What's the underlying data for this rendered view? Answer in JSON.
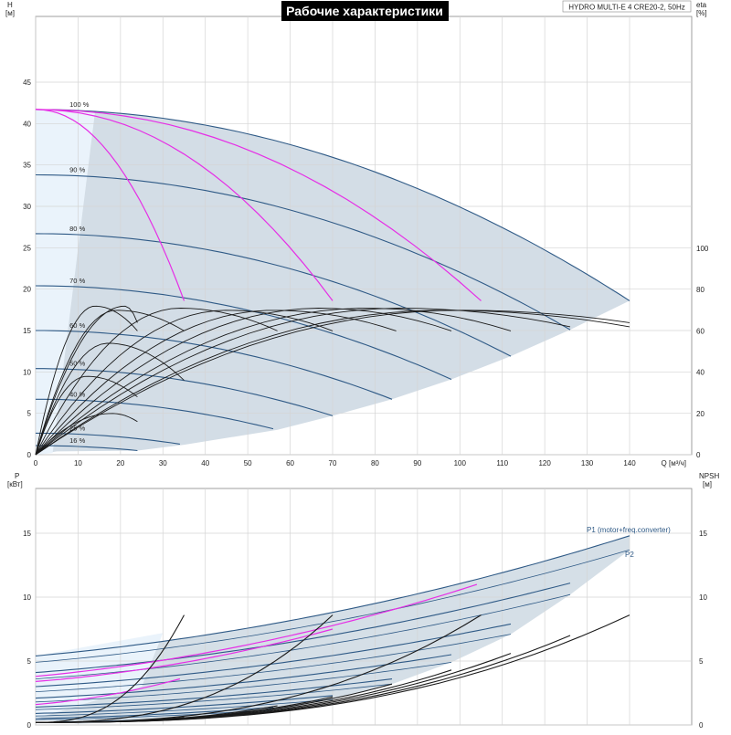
{
  "header": {
    "title": "Рабочие характеристики",
    "model": "HYDRO MULTI-E 4 CRE20-2, 50Hz"
  },
  "colors": {
    "envelope_dark": "#d3dde6",
    "envelope_light": "#eaf3fb",
    "curve_blue": "#2f5a86",
    "curve_magenta": "#e62ee6",
    "curve_black": "#1a1a1a",
    "grid": "#d4d4d4",
    "title_bg": "#000000",
    "title_fg": "#ffffff"
  },
  "chart_data": [
    {
      "type": "line",
      "x_label": "Q [м³/ч]",
      "y_label": "H\n[м]",
      "y2_label": "eta\n[%]",
      "xlim": [
        0,
        140
      ],
      "ylim": [
        0,
        50
      ],
      "y2lim": [
        0,
        160
      ],
      "x_ticks": [
        0,
        10,
        20,
        30,
        40,
        50,
        60,
        70,
        80,
        90,
        100,
        110,
        120,
        130,
        140
      ],
      "y_ticks": [
        0,
        5,
        10,
        15,
        20,
        25,
        30,
        35,
        40,
        45
      ],
      "y2_ticks": [
        0,
        20,
        40,
        60,
        80,
        100
      ],
      "speed_curves": [
        {
          "label": "100 %",
          "max_h": 41.7,
          "q_max": 140,
          "h_end": 18.6
        },
        {
          "label": "90 %",
          "max_h": 33.8,
          "q_max": 126,
          "h_end": 15.1
        },
        {
          "label": "80 %",
          "max_h": 26.7,
          "q_max": 112,
          "h_end": 11.9
        },
        {
          "label": "70 %",
          "max_h": 20.4,
          "q_max": 98,
          "h_end": 9.1
        },
        {
          "label": "60 %",
          "max_h": 15.0,
          "q_max": 84,
          "h_end": 6.7
        },
        {
          "label": "50 %",
          "max_h": 10.4,
          "q_max": 70,
          "h_end": 4.7
        },
        {
          "label": "40 %",
          "max_h": 6.7,
          "q_max": 57,
          "h_end": 3.0
        },
        {
          "label": "25 %",
          "max_h": 2.6,
          "q_max": 35,
          "h_end": 1.2
        },
        {
          "label": "16 %",
          "max_h": 1.1,
          "q_max": 24,
          "h_end": 0.5
        }
      ],
      "system_curves": [
        {
          "q_end": 35,
          "h_end": 18.6
        },
        {
          "q_end": 70,
          "h_end": 18.6
        },
        {
          "q_end": 105,
          "h_end": 18.6
        }
      ],
      "efficiency_curves": [
        {
          "peak_q": 14,
          "peak_eta": 72,
          "q_end": 24,
          "eta_end": 60
        },
        {
          "peak_q": 19,
          "peak_eta": 70,
          "q_end": 35,
          "eta_end": 60
        },
        {
          "peak_q": 21,
          "peak_eta": 72,
          "q_end": 24,
          "eta_end": 64
        },
        {
          "peak_q": 34,
          "peak_eta": 71,
          "q_end": 57,
          "eta_end": 60
        },
        {
          "peak_q": 45,
          "peak_eta": 70,
          "q_end": 70,
          "eta_end": 60
        },
        {
          "peak_q": 56,
          "peak_eta": 70,
          "q_end": 85,
          "eta_end": 60
        },
        {
          "peak_q": 67,
          "peak_eta": 71,
          "q_end": 98,
          "eta_end": 60
        },
        {
          "peak_q": 78,
          "peak_eta": 71,
          "q_end": 112,
          "eta_end": 60
        },
        {
          "peak_q": 86,
          "peak_eta": 71,
          "q_end": 126,
          "eta_end": 62
        },
        {
          "peak_q": 96,
          "peak_eta": 70,
          "q_end": 140,
          "eta_end": 62
        },
        {
          "peak_q": 100,
          "peak_eta": 70,
          "q_end": 140,
          "eta_end": 64
        },
        {
          "peak_q": 17,
          "peak_eta": 54,
          "q_end": 35,
          "eta_end": 36
        },
        {
          "peak_q": 12,
          "peak_eta": 38,
          "q_end": 24,
          "eta_end": 28
        },
        {
          "peak_q": 18,
          "peak_eta": 20,
          "q_end": 24,
          "eta_end": 16
        }
      ]
    },
    {
      "type": "line",
      "x_label": "",
      "y_label": "P\n[кВт]",
      "y2_label": "NPSH\n[м]",
      "xlim": [
        0,
        140
      ],
      "ylim": [
        0,
        18
      ],
      "y2lim": [
        0,
        18
      ],
      "y_ticks": [
        0,
        5,
        10,
        15
      ],
      "y2_ticks": [
        0,
        5,
        10,
        15
      ],
      "series_labels": {
        "p1": "P1 (motor+freq.converter)",
        "p2": "P2"
      },
      "p1_curves": [
        {
          "p0": 5.4,
          "q_end": 140,
          "p_end": 14.8
        },
        {
          "p0": 4.1,
          "q_end": 126,
          "p_end": 11.1
        },
        {
          "p0": 3.0,
          "q_end": 112,
          "p_end": 7.9
        },
        {
          "p0": 2.1,
          "q_end": 98,
          "p_end": 5.5
        },
        {
          "p0": 1.4,
          "q_end": 84,
          "p_end": 3.6
        },
        {
          "p0": 0.9,
          "q_end": 70,
          "p_end": 2.3
        },
        {
          "p0": 0.5,
          "q_end": 57,
          "p_end": 1.4
        },
        {
          "p0": 0.2,
          "q_end": 35,
          "p_end": 0.5
        }
      ],
      "p2_curves": [
        {
          "p0": 4.9,
          "q_end": 140,
          "p_end": 13.7
        },
        {
          "p0": 3.6,
          "q_end": 126,
          "p_end": 10.2
        },
        {
          "p0": 2.6,
          "q_end": 112,
          "p_end": 7.1
        },
        {
          "p0": 1.8,
          "q_end": 98,
          "p_end": 4.9
        },
        {
          "p0": 1.2,
          "q_end": 84,
          "p_end": 3.2
        },
        {
          "p0": 0.7,
          "q_end": 70,
          "p_end": 2.0
        },
        {
          "p0": 0.4,
          "q_end": 57,
          "p_end": 1.2
        }
      ],
      "magenta_curves": [
        {
          "p0": 3.8,
          "q_end": 105,
          "p_end": 11.1
        },
        {
          "p0": 3.4,
          "q_end": 70,
          "p_end": 7.5
        },
        {
          "p0": 1.6,
          "q_end": 35,
          "p_end": 3.7
        }
      ],
      "npsh_curves": [
        {
          "q_end": 140,
          "npsh_end": 8.6
        },
        {
          "q_end": 126,
          "npsh_end": 7.0
        },
        {
          "q_end": 112,
          "npsh_end": 5.6
        },
        {
          "q_end": 105,
          "npsh_end": 8.6
        },
        {
          "q_end": 98,
          "npsh_end": 4.3
        },
        {
          "q_end": 84,
          "npsh_end": 3.2
        },
        {
          "q_end": 70,
          "npsh_end": 8.6
        },
        {
          "q_end": 70,
          "npsh_end": 2.2
        },
        {
          "q_end": 57,
          "npsh_end": 1.5
        },
        {
          "q_end": 35,
          "npsh_end": 8.6
        },
        {
          "q_end": 35,
          "npsh_end": 0.6
        }
      ]
    }
  ]
}
